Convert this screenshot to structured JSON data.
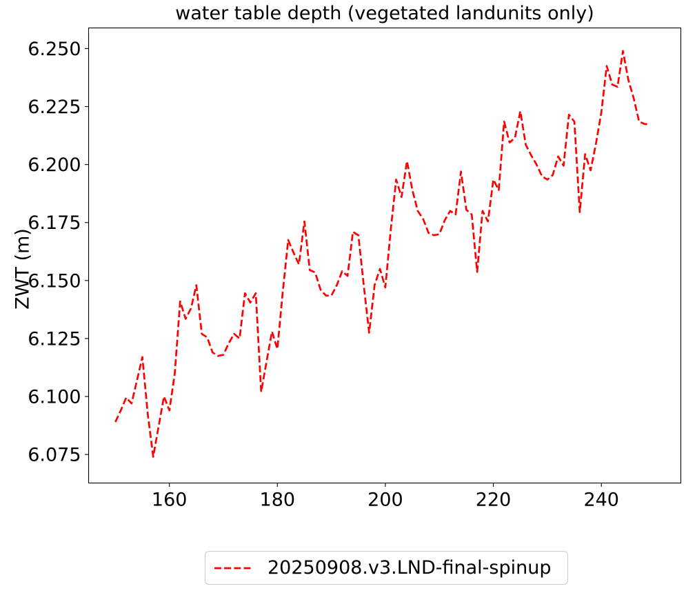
{
  "figure": {
    "background": "#ffffff",
    "text_color": "#000000",
    "frame_color": "#000000"
  },
  "chart_data": {
    "type": "line",
    "title": "water table depth (vegetated landunits only)",
    "xlabel": "",
    "ylabel": "ZWT (m)",
    "xlim": [
      145.04,
      254.72
    ],
    "ylim": [
      6.0627,
      6.2589
    ],
    "grid": false,
    "xticks": {
      "values": [
        160,
        180,
        200,
        220,
        240
      ],
      "labels": [
        "160",
        "180",
        "200",
        "220",
        "240"
      ]
    },
    "yticks": {
      "values": [
        6.075,
        6.1,
        6.125,
        6.15,
        6.175,
        6.2,
        6.225,
        6.25
      ],
      "labels": [
        "6.075",
        "6.100",
        "6.125",
        "6.150",
        "6.175",
        "6.200",
        "6.225",
        "6.250"
      ]
    },
    "legend": {
      "position": "below-axes-center",
      "border_color": "#cbcbcb",
      "labels": [
        "20250908.v3.LND-final-spinup"
      ]
    },
    "series": [
      {
        "name": "20250908.v3.LND-final-spinup",
        "color": "#ff0000",
        "linestyle": "dashed",
        "x": [
          150,
          151,
          152,
          153,
          154,
          155,
          156,
          157,
          158,
          159,
          160,
          161,
          162,
          163,
          164,
          165,
          166,
          167,
          168,
          169,
          170,
          171,
          172,
          173,
          174,
          175,
          176,
          177,
          178,
          179,
          180,
          181,
          182,
          183,
          184,
          185,
          186,
          187,
          188,
          189,
          190,
          191,
          192,
          193,
          194,
          195,
          196,
          197,
          198,
          199,
          200,
          201,
          202,
          203,
          204,
          205,
          206,
          207,
          208,
          209,
          210,
          211,
          212,
          213,
          214,
          215,
          216,
          217,
          218,
          219,
          220,
          221,
          222,
          223,
          224,
          225,
          226,
          227,
          228,
          229,
          230,
          231,
          232,
          233,
          234,
          235,
          236,
          237,
          238,
          239,
          240,
          241,
          242,
          243,
          244,
          245,
          246,
          247,
          248,
          249
        ],
        "zwt_m": [
          6.089,
          6.094,
          6.0995,
          6.097,
          6.107,
          6.117,
          6.0925,
          6.074,
          6.087,
          6.1,
          6.094,
          6.11,
          6.141,
          6.1335,
          6.138,
          6.148,
          6.127,
          6.1255,
          6.119,
          6.1175,
          6.118,
          6.123,
          6.127,
          6.125,
          6.1445,
          6.1405,
          6.1445,
          6.102,
          6.115,
          6.128,
          6.1205,
          6.145,
          6.1675,
          6.162,
          6.157,
          6.1755,
          6.1545,
          6.1535,
          6.146,
          6.1435,
          6.1435,
          6.148,
          6.154,
          6.152,
          6.171,
          6.1695,
          6.148,
          6.1275,
          6.148,
          6.155,
          6.147,
          6.172,
          6.1935,
          6.186,
          6.2015,
          6.189,
          6.18,
          6.1765,
          6.1705,
          6.1695,
          6.17,
          6.176,
          6.18,
          6.1785,
          6.197,
          6.1805,
          6.1785,
          6.1537,
          6.18,
          6.1755,
          6.1935,
          6.189,
          6.2185,
          6.2095,
          6.2115,
          6.223,
          6.2085,
          6.204,
          6.2,
          6.195,
          6.1935,
          6.1955,
          6.2035,
          6.1995,
          6.2215,
          6.2185,
          6.1795,
          6.2045,
          6.1975,
          6.209,
          6.2225,
          6.2425,
          6.2345,
          6.2335,
          6.249,
          6.2365,
          6.2285,
          6.2185,
          6.2175,
          6.2173
        ]
      }
    ]
  }
}
